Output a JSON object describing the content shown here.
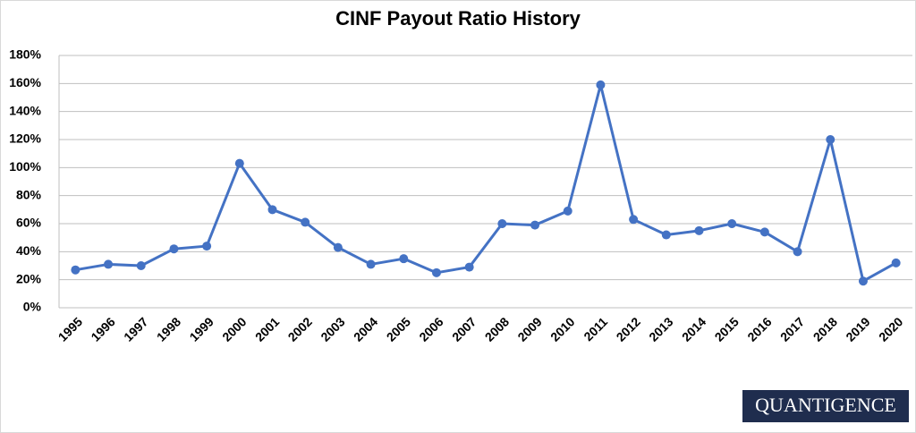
{
  "chart_data": {
    "type": "line",
    "title": "CINF Payout Ratio History",
    "categories": [
      "1995",
      "1996",
      "1997",
      "1998",
      "1999",
      "2000",
      "2001",
      "2002",
      "2003",
      "2004",
      "2005",
      "2006",
      "2007",
      "2008",
      "2009",
      "2010",
      "2011",
      "2012",
      "2013",
      "2014",
      "2015",
      "2016",
      "2017",
      "2018",
      "2019",
      "2020"
    ],
    "series": [
      {
        "name": "Payout Ratio",
        "color": "#4472c4",
        "values": [
          27,
          31,
          30,
          42,
          44,
          103,
          70,
          61,
          43,
          31,
          35,
          25,
          29,
          60,
          59,
          69,
          159,
          63,
          52,
          55,
          60,
          54,
          40,
          120,
          19,
          32
        ]
      }
    ],
    "ylim": [
      0,
      180
    ],
    "yticks": [
      {
        "value": 0,
        "label": "0%"
      },
      {
        "value": 20,
        "label": "20%"
      },
      {
        "value": 40,
        "label": "40%"
      },
      {
        "value": 60,
        "label": "60%"
      },
      {
        "value": 80,
        "label": "80%"
      },
      {
        "value": 100,
        "label": "100%"
      },
      {
        "value": 120,
        "label": "120%"
      },
      {
        "value": 140,
        "label": "140%"
      },
      {
        "value": 160,
        "label": "160%"
      },
      {
        "value": 180,
        "label": "180%"
      }
    ],
    "grid": true
  },
  "logo": "QUANTIGENCE"
}
